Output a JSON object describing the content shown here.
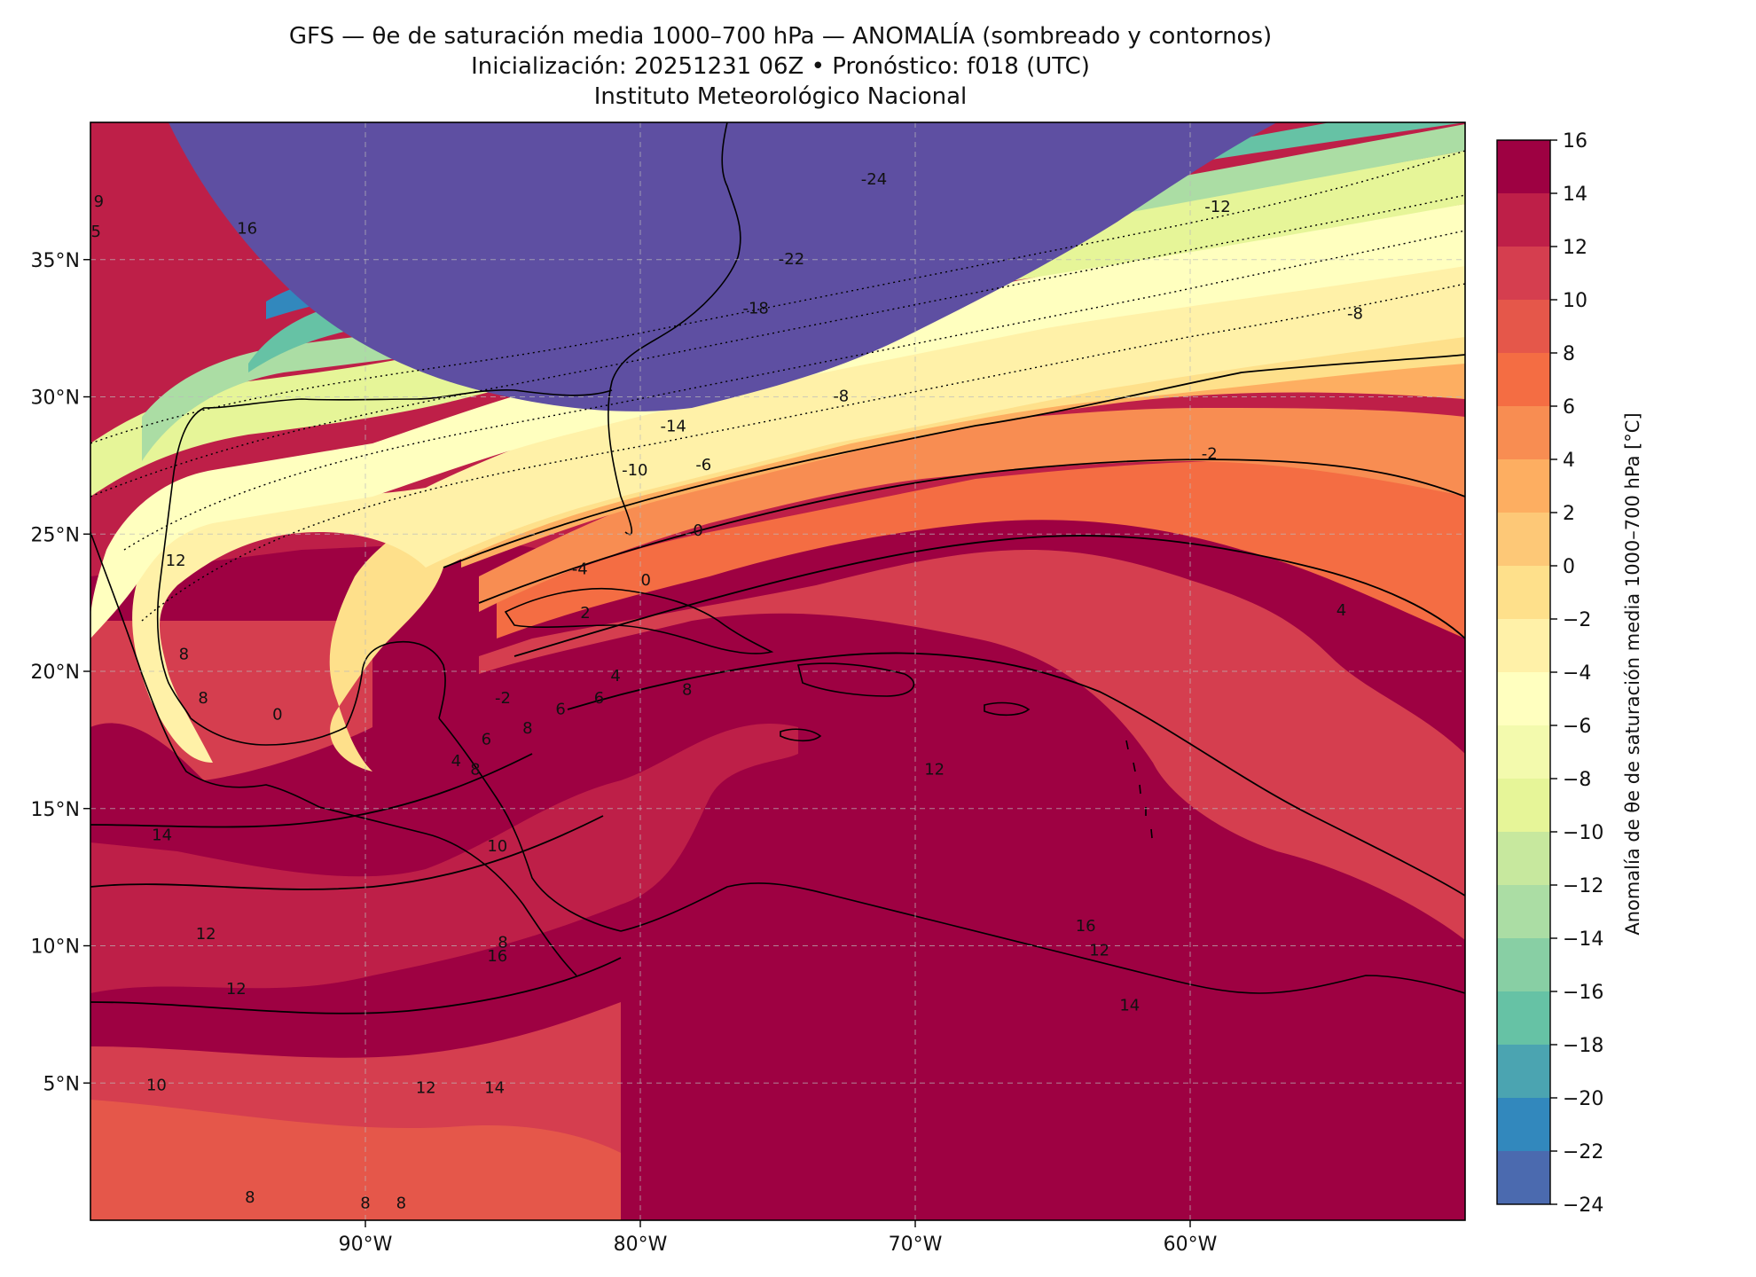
{
  "header": {
    "title": "GFS — θe de saturación media 1000–700 hPa — ANOMALÍA (sombreado y contornos)",
    "subtitle": "Inicialización: 20251231 06Z   •   Pronóstico: f018 (UTC)",
    "institution": "Instituto Meteorológico Nacional"
  },
  "map": {
    "lon_range": [
      -100,
      -50
    ],
    "lat_range": [
      0,
      40
    ],
    "lon_ticks": [
      {
        "lon": -90,
        "label": "90°W"
      },
      {
        "lon": -80,
        "label": "80°W"
      },
      {
        "lon": -70,
        "label": "70°W"
      },
      {
        "lon": -60,
        "label": "60°W"
      }
    ],
    "lat_ticks": [
      {
        "lat": 35,
        "label": "35°N"
      },
      {
        "lat": 30,
        "label": "30°N"
      },
      {
        "lat": 25,
        "label": "25°N"
      },
      {
        "lat": 20,
        "label": "20°N"
      },
      {
        "lat": 15,
        "label": "15°N"
      },
      {
        "lat": 10,
        "label": "10°N"
      },
      {
        "lat": 5,
        "label": "5°N"
      }
    ],
    "contour_labels": [
      {
        "text": "-24",
        "lon": -71.5,
        "lat": 37.9
      },
      {
        "text": "-22",
        "lon": -74.5,
        "lat": 35.0
      },
      {
        "text": "-18",
        "lon": -75.8,
        "lat": 33.2
      },
      {
        "text": "-14",
        "lon": -78.8,
        "lat": 28.9
      },
      {
        "text": "-12",
        "lon": -59.0,
        "lat": 36.9
      },
      {
        "text": "-10",
        "lon": -80.2,
        "lat": 27.3
      },
      {
        "text": "-8",
        "lon": -72.7,
        "lat": 30.0
      },
      {
        "text": "-8",
        "lon": -54.0,
        "lat": 33.0
      },
      {
        "text": "-6",
        "lon": -77.7,
        "lat": 27.5
      },
      {
        "text": "-4",
        "lon": -82.2,
        "lat": 23.7
      },
      {
        "text": "-2",
        "lon": -59.3,
        "lat": 27.9
      },
      {
        "text": "-2",
        "lon": -85.0,
        "lat": 19.0
      },
      {
        "text": "0",
        "lon": -79.8,
        "lat": 23.3
      },
      {
        "text": "0",
        "lon": -77.9,
        "lat": 25.1
      },
      {
        "text": "0",
        "lon": -93.2,
        "lat": 18.4
      },
      {
        "text": "2",
        "lon": -82.0,
        "lat": 22.1
      },
      {
        "text": "4",
        "lon": -54.5,
        "lat": 22.2
      },
      {
        "text": "4",
        "lon": -86.7,
        "lat": 16.7
      },
      {
        "text": "4",
        "lon": -80.9,
        "lat": 19.8
      },
      {
        "text": "6",
        "lon": -85.6,
        "lat": 17.5
      },
      {
        "text": "6",
        "lon": -82.9,
        "lat": 18.6
      },
      {
        "text": "8",
        "lon": -84.1,
        "lat": 17.9
      },
      {
        "text": "8",
        "lon": -86.0,
        "lat": 16.4
      },
      {
        "text": "8",
        "lon": -78.3,
        "lat": 19.3
      },
      {
        "text": "8",
        "lon": -85.0,
        "lat": 10.1
      },
      {
        "text": "8",
        "lon": -90.0,
        "lat": 0.6
      },
      {
        "text": "8",
        "lon": -94.2,
        "lat": 0.8
      },
      {
        "text": "8",
        "lon": -88.7,
        "lat": 0.6
      },
      {
        "text": "10",
        "lon": -85.2,
        "lat": 13.6
      },
      {
        "text": "10",
        "lon": -97.6,
        "lat": 4.9
      },
      {
        "text": "12",
        "lon": -69.3,
        "lat": 16.4
      },
      {
        "text": "12",
        "lon": -95.8,
        "lat": 10.4
      },
      {
        "text": "12",
        "lon": -94.7,
        "lat": 8.4
      },
      {
        "text": "12",
        "lon": -87.8,
        "lat": 4.8
      },
      {
        "text": "12",
        "lon": -63.3,
        "lat": 9.8
      },
      {
        "text": "14",
        "lon": -97.4,
        "lat": 14.0
      },
      {
        "text": "14",
        "lon": -85.3,
        "lat": 4.8
      },
      {
        "text": "14",
        "lon": -62.2,
        "lat": 7.8
      },
      {
        "text": "16",
        "lon": -63.8,
        "lat": 10.7
      },
      {
        "text": "16",
        "lon": -85.2,
        "lat": 9.6
      },
      {
        "text": "16",
        "lon": -94.3,
        "lat": 36.1
      },
      {
        "text": "12",
        "lon": -96.9,
        "lat": 24.0
      },
      {
        "text": "8",
        "lon": -96.6,
        "lat": 20.6
      },
      {
        "text": "8",
        "lon": -95.9,
        "lat": 19.0
      },
      {
        "text": "9",
        "lon": -99.7,
        "lat": 37.1
      },
      {
        "text": "5",
        "lon": -99.8,
        "lat": 36.0
      },
      {
        "text": "6",
        "lon": -81.5,
        "lat": 19.0
      }
    ]
  },
  "colorbar": {
    "label": "Anomalía de θe de saturación media 1000–700 hPa [°C]",
    "ticks": [
      "16",
      "14",
      "12",
      "10",
      "8",
      "6",
      "4",
      "2",
      "0",
      "−2",
      "−4",
      "−6",
      "−8",
      "−10",
      "−12",
      "−14",
      "−16",
      "−18",
      "−20",
      "−22",
      "−24"
    ],
    "colors": [
      "#9e0142",
      "#be1f48",
      "#d53e4f",
      "#e5574a",
      "#f46d43",
      "#f88d52",
      "#fdae61",
      "#fdc877",
      "#fee08b",
      "#fff1a8",
      "#ffffbf",
      "#f3faad",
      "#e6f598",
      "#c7e89e",
      "#abdda4",
      "#88cfa4",
      "#66c2a5",
      "#4ba4b1",
      "#3288bd",
      "#4b6aaf",
      "#5e4fa2"
    ]
  }
}
